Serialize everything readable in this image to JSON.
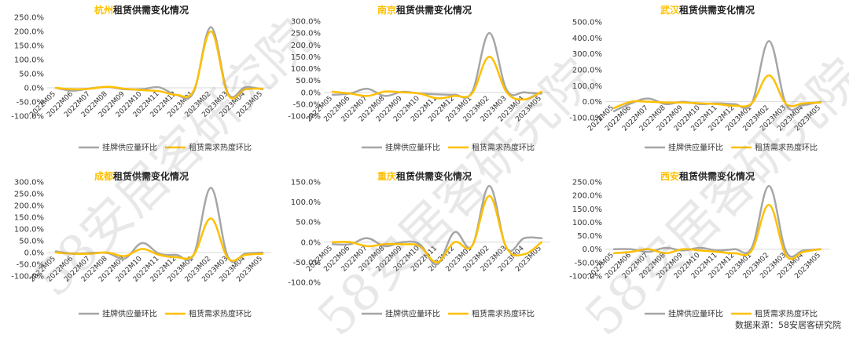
{
  "source_text": "数据来源：58安居客研究院",
  "watermark": "58安居客研究院",
  "colors": {
    "supply": "#A6A6A6",
    "demand": "#FFC000",
    "city": "#FFC000",
    "text": "#222222",
    "axis": "#D9D9D9"
  },
  "chart_data": [
    {
      "type": "line",
      "city": "杭州",
      "title_suffix": "租赁供需变化情况",
      "categories": [
        "2022M05",
        "2022M06",
        "2022M07",
        "2022M08",
        "2022M09",
        "2022M10",
        "2022M11",
        "2022M12",
        "2023M01",
        "2023M02",
        "2023M03",
        "2023M04",
        "2023M05"
      ],
      "ylim": [
        -100,
        250
      ],
      "yticks": [
        -100,
        -50,
        0,
        50,
        100,
        150,
        200,
        250
      ],
      "series": [
        {
          "name": "挂牌供应量环比",
          "values": [
            0,
            -10,
            -2,
            3,
            -5,
            -5,
            2,
            -25,
            -15,
            215,
            -20,
            2,
            -5
          ]
        },
        {
          "name": "租赁需求热度环比",
          "values": [
            0,
            -5,
            -3,
            4,
            -3,
            -8,
            -12,
            -25,
            -10,
            200,
            -25,
            -5,
            -3
          ]
        }
      ]
    },
    {
      "type": "line",
      "city": "南京",
      "title_suffix": "租赁供需变化情况",
      "categories": [
        "2022M05",
        "2022M06",
        "2022M07",
        "2022M08",
        "2022M09",
        "2022M10",
        "2022M11",
        "2022M12",
        "2023M01",
        "2023M02",
        "2023M03",
        "2023M04",
        "2023M05"
      ],
      "ylim": [
        -100,
        300
      ],
      "yticks": [
        -100,
        -50,
        0,
        50,
        100,
        150,
        200,
        250,
        300
      ],
      "series": [
        {
          "name": "挂牌供应量环比",
          "values": [
            -10,
            -5,
            15,
            -15,
            2,
            -5,
            -8,
            -10,
            0,
            250,
            10,
            0,
            -5
          ]
        },
        {
          "name": "租赁需求热度环比",
          "values": [
            3,
            -5,
            -15,
            3,
            0,
            -5,
            -25,
            -15,
            -5,
            150,
            0,
            -30,
            3
          ]
        }
      ]
    },
    {
      "type": "line",
      "city": "武汉",
      "title_suffix": "租赁供需变化情况",
      "categories": [
        "2022M05",
        "2022M06",
        "2022M07",
        "2022M08",
        "2022M09",
        "2022M10",
        "2022M11",
        "2022M12",
        "2023M01",
        "2023M02",
        "2023M03",
        "2023M04",
        "2023M05"
      ],
      "ylim": [
        -100,
        500
      ],
      "yticks": [
        -100,
        0,
        100,
        200,
        300,
        400,
        500
      ],
      "series": [
        {
          "name": "挂牌供应量环比",
          "values": [
            -60,
            -10,
            20,
            -15,
            0,
            -15,
            -10,
            -15,
            -10,
            380,
            -20,
            -20,
            0
          ]
        },
        {
          "name": "租赁需求热度环比",
          "values": [
            -40,
            0,
            0,
            -5,
            -5,
            -10,
            -15,
            -25,
            -10,
            165,
            -15,
            -10,
            -5
          ]
        }
      ]
    },
    {
      "type": "line",
      "city": "成都",
      "title_suffix": "租赁供需变化情况",
      "categories": [
        "2022M05",
        "2022M06",
        "2022M07",
        "2022M08",
        "2022M09",
        "2022M10",
        "2022M11",
        "2022M12",
        "2023M01",
        "2023M02",
        "2023M03",
        "2023M04",
        "2023M05"
      ],
      "ylim": [
        -100,
        300
      ],
      "yticks": [
        -100,
        -50,
        0,
        50,
        100,
        150,
        200,
        250,
        300
      ],
      "series": [
        {
          "name": "挂牌供应量环比",
          "values": [
            5,
            -5,
            -2,
            -2,
            -25,
            40,
            -5,
            -10,
            -10,
            275,
            -20,
            -5,
            0
          ]
        },
        {
          "name": "租赁需求热度环比",
          "values": [
            0,
            -5,
            -5,
            0,
            -15,
            15,
            -10,
            -20,
            -10,
            145,
            -25,
            -10,
            -5
          ]
        }
      ]
    },
    {
      "type": "line",
      "city": "重庆",
      "title_suffix": "租赁供需变化情况",
      "categories": [
        "2022M05",
        "2022M06",
        "2022M07",
        "2022M08",
        "2022M09",
        "2022M10",
        "2022M11",
        "2022M12",
        "2023M01",
        "2023M02",
        "2023M03",
        "2023M04",
        "2023M05"
      ],
      "ylim": [
        -100,
        150
      ],
      "yticks": [
        -100,
        -50,
        0,
        50,
        100,
        150
      ],
      "series": [
        {
          "name": "挂牌供应量环比",
          "values": [
            -5,
            -5,
            10,
            -10,
            0,
            -5,
            -55,
            25,
            -10,
            140,
            -15,
            10,
            10
          ]
        },
        {
          "name": "租赁需求热度环比",
          "values": [
            0,
            0,
            -10,
            -5,
            -5,
            -10,
            -50,
            0,
            -10,
            115,
            -15,
            -30,
            0
          ]
        }
      ]
    },
    {
      "type": "line",
      "city": "西安",
      "title_suffix": "租赁供需变化情况",
      "categories": [
        "2022M05",
        "2022M06",
        "2022M07",
        "2022M08",
        "2022M09",
        "2022M10",
        "2022M11",
        "2022M12",
        "2023M01",
        "2023M02",
        "2023M03",
        "2023M04",
        "2023M05"
      ],
      "ylim": [
        -100,
        250
      ],
      "yticks": [
        -100,
        -50,
        0,
        50,
        100,
        150,
        200,
        250
      ],
      "series": [
        {
          "name": "挂牌供应量环比",
          "values": [
            0,
            0,
            -10,
            5,
            -5,
            5,
            -5,
            0,
            5,
            235,
            -10,
            -5,
            0
          ]
        },
        {
          "name": "租赁需求热度环比",
          "values": [
            -15,
            -10,
            0,
            -15,
            0,
            -5,
            -10,
            -15,
            -5,
            165,
            -25,
            -10,
            0
          ]
        }
      ]
    }
  ]
}
